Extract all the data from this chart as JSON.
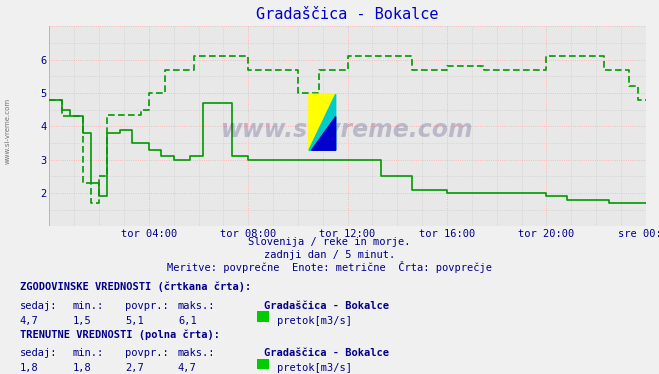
{
  "title": "Gradaščica - Bokalce",
  "title_color": "#0000cc",
  "bg_color": "#f0f0f0",
  "plot_bg_color": "#e8e8e8",
  "grid_color_major": "#ffaaaa",
  "grid_color_minor": "#cccccc",
  "line_color": "#009900",
  "xlabel_color": "#000088",
  "text_color": "#000088",
  "subtitle1": "Slovenija / reke in morje.",
  "subtitle2": "zadnji dan / 5 minut.",
  "subtitle3": "Meritve: povprečne  Enote: metrične  Črta: povprečje",
  "xtick_labels": [
    "tor 04:00",
    "tor 08:00",
    "tor 12:00",
    "tor 16:00",
    "tor 20:00",
    "sre 00:00"
  ],
  "ylim": [
    1.0,
    7.0
  ],
  "xlim_start": 0,
  "xlim_end": 288,
  "watermark": "www.si-vreme.com",
  "hist_label": "ZGODOVINSKE VREDNOSTI (črtkana črta):",
  "hist_sedaj": "4,7",
  "hist_min": "1,5",
  "hist_povpr": "5,1",
  "hist_maks": "6,1",
  "curr_label": "TRENUTNE VREDNOSTI (polna črta):",
  "curr_sedaj": "1,8",
  "curr_min": "1,8",
  "curr_povpr": "2,7",
  "curr_maks": "4,7",
  "station": "Gradaščica - Bokalce",
  "unit": "pretok[m3/s]",
  "legend_color": "#00cc00",
  "yticks": [
    2,
    3,
    4,
    5,
    6
  ],
  "xtick_positions": [
    48,
    96,
    144,
    192,
    240,
    288
  ]
}
